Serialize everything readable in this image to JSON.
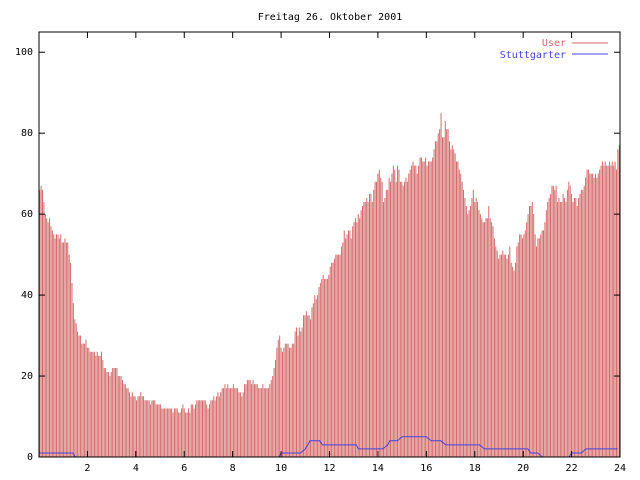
{
  "chart_data": {
    "type": "bar",
    "title": "Freitag 26. Oktober 2001",
    "xlim": [
      0,
      24
    ],
    "ylim": [
      0,
      105
    ],
    "x_ticks": [
      2,
      4,
      6,
      8,
      10,
      12,
      14,
      16,
      18,
      20,
      22,
      24
    ],
    "y_ticks": [
      0,
      20,
      40,
      60,
      80,
      100
    ],
    "legend_position": "top-right",
    "series": [
      {
        "name": "User",
        "color": "#d46a6a",
        "style": "impulses",
        "values": [
          66,
          67,
          66,
          63,
          60,
          59,
          58,
          59,
          57,
          56,
          55,
          54,
          55,
          55,
          54,
          55,
          53,
          53,
          54,
          53,
          53,
          50,
          48,
          43,
          38,
          34,
          33,
          31,
          30,
          30,
          28,
          28,
          28,
          29,
          27,
          27,
          26,
          26,
          26,
          26,
          25,
          26,
          25,
          25,
          26,
          24,
          22,
          22,
          21,
          21,
          20,
          21,
          22,
          22,
          22,
          22,
          20,
          20,
          20,
          19,
          18,
          18,
          17,
          17,
          16,
          15,
          16,
          15,
          15,
          14,
          15,
          15,
          16,
          15,
          15,
          14,
          14,
          14,
          14,
          13,
          14,
          14,
          14,
          13,
          13,
          13,
          13,
          12,
          12,
          12,
          12,
          12,
          12,
          12,
          12,
          11,
          12,
          12,
          12,
          11,
          11,
          12,
          13,
          12,
          11,
          11,
          12,
          11,
          13,
          13,
          12,
          13,
          14,
          14,
          14,
          14,
          14,
          14,
          14,
          13,
          12,
          13,
          14,
          14,
          15,
          14,
          15,
          16,
          15,
          16,
          17,
          17,
          18,
          17,
          18,
          17,
          17,
          17,
          18,
          17,
          17,
          17,
          16,
          16,
          15,
          16,
          18,
          18,
          19,
          19,
          19,
          18,
          19,
          18,
          18,
          18,
          17,
          17,
          17,
          18,
          17,
          17,
          17,
          17,
          18,
          19,
          20,
          22,
          24,
          27,
          29,
          30,
          27,
          26,
          27,
          28,
          28,
          28,
          27,
          27,
          28,
          28,
          31,
          32,
          30,
          32,
          31,
          32,
          35,
          35,
          36,
          35,
          35,
          34,
          37,
          38,
          40,
          39,
          40,
          42,
          43,
          44,
          45,
          44,
          44,
          44,
          45,
          47,
          48,
          48,
          49,
          50,
          50,
          50,
          50,
          52,
          53,
          56,
          54,
          55,
          56,
          56,
          54,
          57,
          58,
          59,
          58,
          60,
          59,
          61,
          62,
          63,
          63,
          64,
          63,
          65,
          65,
          63,
          66,
          68,
          68,
          70,
          71,
          69,
          68,
          63,
          64,
          66,
          66,
          69,
          68,
          70,
          72,
          71,
          68,
          72,
          71,
          68,
          68,
          67,
          68,
          69,
          68,
          70,
          71,
          72,
          73,
          72,
          72,
          70,
          72,
          74,
          74,
          73,
          73,
          74,
          72,
          73,
          73,
          73,
          74,
          76,
          78,
          78,
          80,
          81,
          85,
          79,
          79,
          83,
          81,
          81,
          78,
          76,
          77,
          76,
          75,
          73,
          73,
          71,
          70,
          68,
          66,
          64,
          62,
          60,
          61,
          62,
          64,
          66,
          63,
          64,
          63,
          61,
          60,
          59,
          58,
          58,
          59,
          59,
          62,
          59,
          58,
          57,
          54,
          52,
          51,
          49,
          50,
          50,
          51,
          50,
          50,
          49,
          50,
          52,
          48,
          47,
          46,
          48,
          52,
          53,
          55,
          55,
          54,
          55,
          56,
          58,
          60,
          62,
          62,
          63,
          60,
          55,
          52,
          54,
          54,
          55,
          56,
          56,
          58,
          61,
          63,
          64,
          65,
          67,
          67,
          66,
          67,
          63,
          64,
          63,
          63,
          65,
          64,
          63,
          66,
          68,
          67,
          65,
          63,
          64,
          64,
          62,
          64,
          65,
          66,
          66,
          67,
          69,
          71,
          71,
          70,
          70,
          70,
          69,
          70,
          69,
          70,
          71,
          72,
          73,
          72,
          73,
          72,
          72,
          73,
          72,
          73,
          72,
          73,
          71,
          76,
          77
        ]
      },
      {
        "name": "Stuttgarter",
        "color": "#4444dd",
        "style": "line",
        "points": [
          [
            0,
            1
          ],
          [
            1.4,
            1
          ],
          [
            1.5,
            0
          ],
          [
            9.9,
            0
          ],
          [
            10.0,
            1
          ],
          [
            10.8,
            1
          ],
          [
            11.0,
            2
          ],
          [
            11.1,
            3
          ],
          [
            11.2,
            4
          ],
          [
            11.6,
            4
          ],
          [
            11.7,
            3
          ],
          [
            13.1,
            3
          ],
          [
            13.2,
            2
          ],
          [
            14.2,
            2
          ],
          [
            14.4,
            3
          ],
          [
            14.5,
            4
          ],
          [
            14.8,
            4
          ],
          [
            15.0,
            5
          ],
          [
            16.0,
            5
          ],
          [
            16.2,
            4
          ],
          [
            16.6,
            4
          ],
          [
            16.8,
            3
          ],
          [
            18.2,
            3
          ],
          [
            18.4,
            2
          ],
          [
            20.2,
            2
          ],
          [
            20.3,
            1
          ],
          [
            20.6,
            1
          ],
          [
            20.8,
            0
          ],
          [
            21.9,
            0
          ],
          [
            22.0,
            1
          ],
          [
            22.4,
            1
          ],
          [
            22.6,
            2
          ],
          [
            23.9,
            2
          ]
        ]
      }
    ]
  }
}
